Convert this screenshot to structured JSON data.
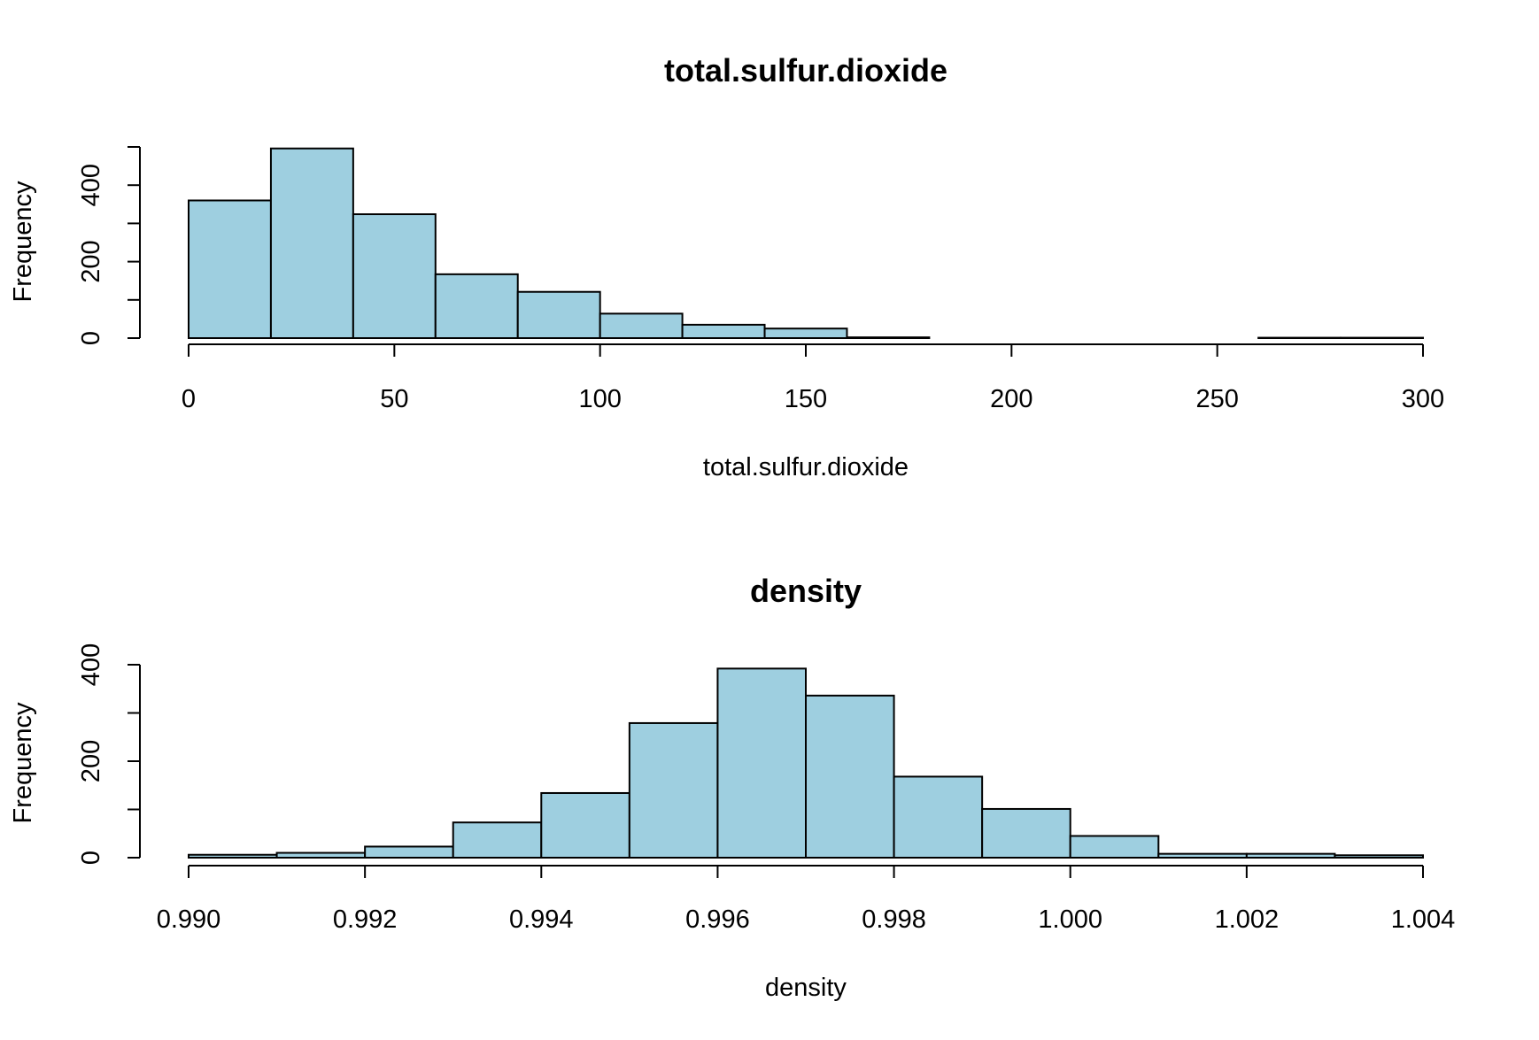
{
  "chart_data": [
    {
      "type": "bar",
      "title": "total.sulfur.dioxide",
      "xlabel": "total.sulfur.dioxide",
      "ylabel": "Frequency",
      "bin_edges": [
        0,
        20,
        40,
        60,
        80,
        100,
        120,
        140,
        160,
        180,
        200,
        220,
        240,
        260,
        280,
        300
      ],
      "values": [
        360,
        496,
        324,
        167,
        121,
        64,
        35,
        25,
        2,
        0,
        0,
        0,
        0,
        1,
        1
      ],
      "xlim": [
        0,
        300
      ],
      "ylim": [
        0,
        500
      ],
      "x_ticks": [
        "0",
        "50",
        "100",
        "150",
        "200",
        "250",
        "300"
      ],
      "y_ticks": [
        "0",
        "200",
        "400"
      ],
      "colors": {
        "fill": "#9ecfe0",
        "stroke": "#000000"
      }
    },
    {
      "type": "bar",
      "title": "density",
      "xlabel": "density",
      "ylabel": "Frequency",
      "bin_edges": [
        0.99,
        0.991,
        0.992,
        0.993,
        0.994,
        0.995,
        0.996,
        0.997,
        0.998,
        0.999,
        1.0,
        1.001,
        1.002,
        1.003,
        1.004
      ],
      "values": [
        6,
        10,
        23,
        73,
        134,
        279,
        392,
        336,
        168,
        101,
        45,
        8,
        8,
        5
      ],
      "xlim": [
        0.99,
        1.004
      ],
      "ylim": [
        0,
        400
      ],
      "x_ticks": [
        "0.990",
        "0.992",
        "0.994",
        "0.996",
        "0.998",
        "1.000",
        "1.002",
        "1.004"
      ],
      "y_ticks": [
        "0",
        "200",
        "400"
      ],
      "colors": {
        "fill": "#9ecfe0",
        "stroke": "#000000"
      }
    }
  ]
}
